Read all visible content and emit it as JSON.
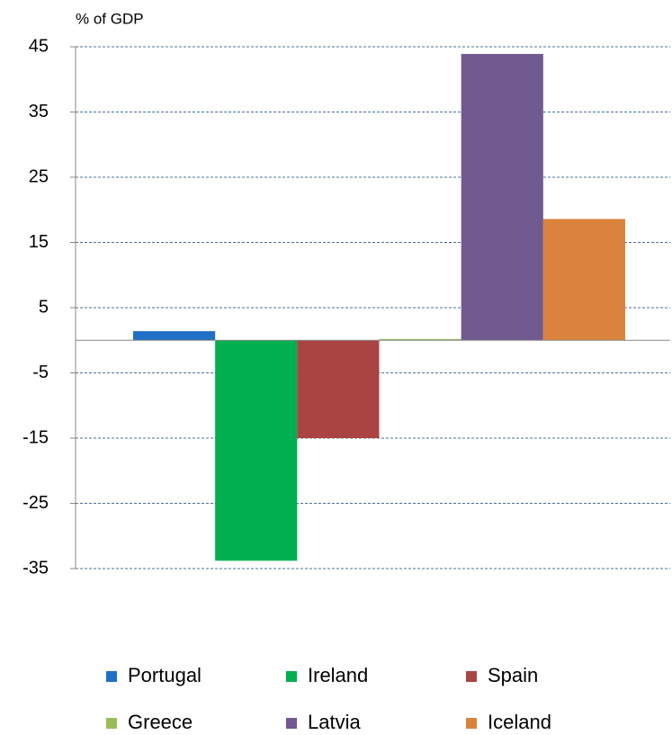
{
  "chart_data": {
    "type": "bar",
    "y_label": "% of GDP",
    "categories": [
      null
    ],
    "series": [
      {
        "name": "Portugal",
        "color": "#1f6fc5",
        "values": [
          1.4
        ]
      },
      {
        "name": "Ireland",
        "color": "#00b050",
        "values": [
          -33.8
        ]
      },
      {
        "name": "Spain",
        "color": "#a94442",
        "values": [
          -15.0
        ]
      },
      {
        "name": "Greece",
        "color": "#9bbb59",
        "values": [
          0.2
        ]
      },
      {
        "name": "Latvia",
        "color": "#705a8f",
        "values": [
          43.9
        ]
      },
      {
        "name": "Iceland",
        "color": "#d9833d",
        "values": [
          18.6
        ]
      }
    ],
    "ylim": [
      -35,
      45
    ],
    "yticks": [
      45,
      35,
      25,
      15,
      5,
      -5,
      -15,
      -25,
      -35
    ],
    "grid": true
  }
}
